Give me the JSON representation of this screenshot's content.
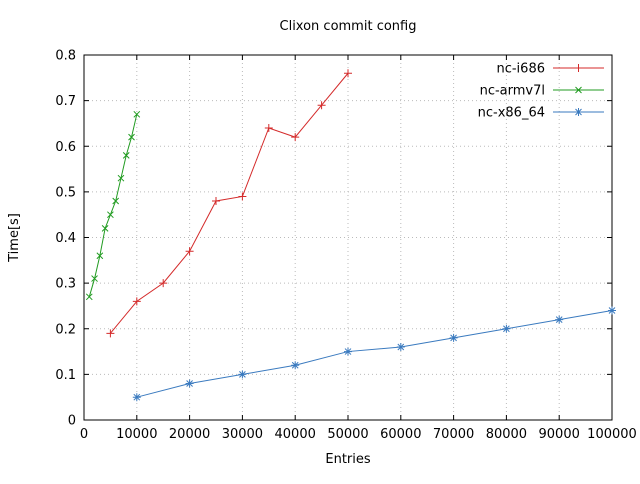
{
  "title": "Clixon commit config",
  "chart_data": {
    "type": "line",
    "title": "Clixon commit config",
    "xlabel": "Entries",
    "ylabel": "Time[s]",
    "xlim": [
      0,
      100000
    ],
    "ylim": [
      0,
      0.8
    ],
    "xtick_step": 10000,
    "ytick_step": 0.1,
    "grid": true,
    "legend_position": "top-right-inside",
    "background": "#ffffff",
    "grid_color": "#bbbbbb",
    "border_color": "#000000",
    "series": [
      {
        "name": "nc-i686",
        "color": "#d42a2a",
        "marker": "plus",
        "x": [
          5000,
          10000,
          15000,
          20000,
          25000,
          30000,
          35000,
          40000,
          45000,
          50000
        ],
        "y": [
          0.19,
          0.26,
          0.3,
          0.37,
          0.48,
          0.49,
          0.64,
          0.62,
          0.69,
          0.76
        ]
      },
      {
        "name": "nc-armv7l",
        "color": "#209b20",
        "marker": "x",
        "x": [
          1000,
          2000,
          3000,
          4000,
          5000,
          6000,
          7000,
          8000,
          9000,
          10000
        ],
        "y": [
          0.27,
          0.31,
          0.36,
          0.42,
          0.45,
          0.48,
          0.53,
          0.58,
          0.62,
          0.67
        ]
      },
      {
        "name": "nc-x86_64",
        "color": "#3a7abf",
        "marker": "asterisk",
        "x": [
          10000,
          20000,
          30000,
          40000,
          50000,
          60000,
          70000,
          80000,
          90000,
          100000
        ],
        "y": [
          0.05,
          0.08,
          0.1,
          0.12,
          0.15,
          0.16,
          0.18,
          0.2,
          0.22,
          0.24
        ]
      }
    ]
  }
}
